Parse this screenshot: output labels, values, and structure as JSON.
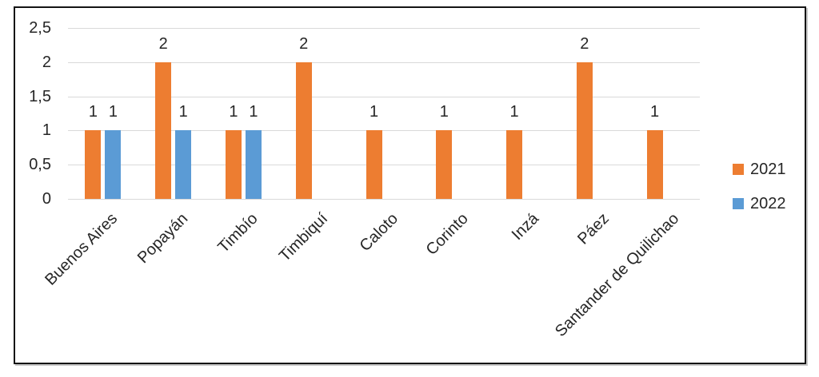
{
  "chart_data": {
    "type": "bar",
    "title": "",
    "xlabel": "",
    "ylabel": "",
    "categories": [
      "Buenos Aires",
      "Popayán",
      "Timbío",
      "Timbiquí",
      "Caloto",
      "Corinto",
      "Inzá",
      "Páez",
      "Santander de Quilichao"
    ],
    "series": [
      {
        "name": "2021",
        "color": "#ED7D31",
        "values": [
          1,
          2,
          1,
          2,
          1,
          1,
          1,
          2,
          1
        ]
      },
      {
        "name": "2022",
        "color": "#5B9BD5",
        "values": [
          1,
          1,
          1,
          0,
          0,
          0,
          0,
          0,
          0
        ]
      }
    ],
    "data_labels_shown": true,
    "ylim": [
      0,
      2.5
    ],
    "yticks": [
      {
        "value": 0,
        "label": "0"
      },
      {
        "value": 0.5,
        "label": "0,5"
      },
      {
        "value": 1,
        "label": "1"
      },
      {
        "value": 1.5,
        "label": "1,5"
      },
      {
        "value": 2,
        "label": "2"
      },
      {
        "value": 2.5,
        "label": "2,5"
      }
    ],
    "grid": true,
    "legend_position": "right",
    "legend": [
      "2021",
      "2022"
    ],
    "colors": {
      "series_2021": "#ED7D31",
      "series_2022": "#5B9BD5",
      "gridline": "#d9d9d9",
      "text": "#262626",
      "frame_border": "#141414"
    }
  }
}
